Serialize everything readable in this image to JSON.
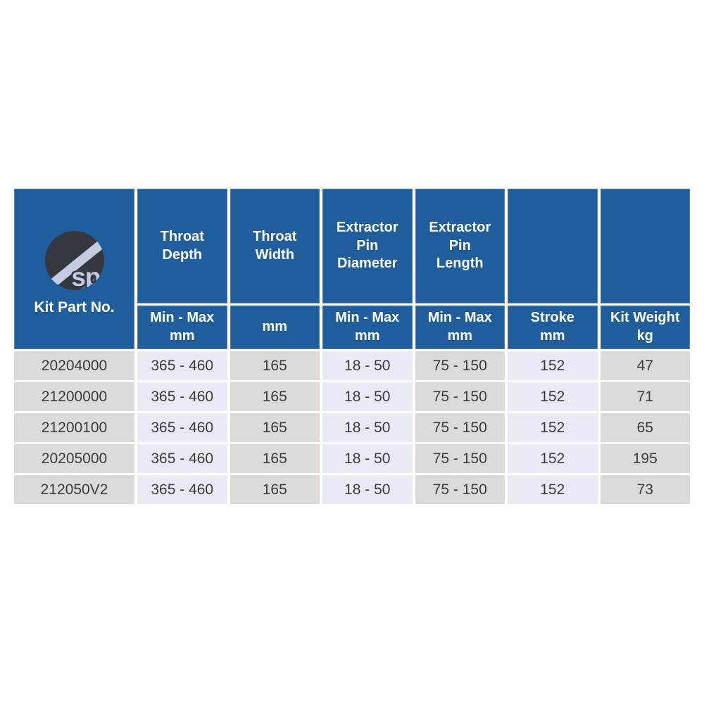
{
  "colors": {
    "header_blue": "#1f5d9c",
    "cell_gray": "#dcdbd9",
    "cell_tint": "#e8ebf4",
    "logo_circle_dark": "#35383e",
    "logo_stripe_light": "#c3cbe3",
    "logo_stripe_blue": "#3b6cab",
    "data_text": "#3b3b3b",
    "header_text": "#ffffff"
  },
  "table": {
    "corner": {
      "label": "Kit Part No.",
      "logo_text": "sp"
    },
    "columns": [
      {
        "title": "Throat\nDepth",
        "subtitle": "Min - Max\nmm"
      },
      {
        "title": "Throat\nWidth",
        "subtitle": "mm"
      },
      {
        "title": "Extractor\nPin\nDiameter",
        "subtitle": "Min - Max\nmm"
      },
      {
        "title": "Extractor\nPin\nLength",
        "subtitle": "Min - Max\nmm"
      },
      {
        "title": "",
        "subtitle": "Stroke\nmm"
      },
      {
        "title": "",
        "subtitle": "Kit Weight\nkg"
      }
    ],
    "rows": [
      [
        "20204000",
        "365 - 460",
        "165",
        "18 - 50",
        "75 - 150",
        "152",
        "47"
      ],
      [
        "21200000",
        "365 - 460",
        "165",
        "18 - 50",
        "75 - 150",
        "152",
        "71"
      ],
      [
        "21200100",
        "365 - 460",
        "165",
        "18 - 50",
        "75 - 150",
        "152",
        "65"
      ],
      [
        "20205000",
        "365 - 460",
        "165",
        "18 - 50",
        "75 - 150",
        "152",
        "195"
      ],
      [
        "212050V2",
        "365 - 460",
        "165",
        "18 - 50",
        "75 - 150",
        "152",
        "73"
      ]
    ]
  }
}
